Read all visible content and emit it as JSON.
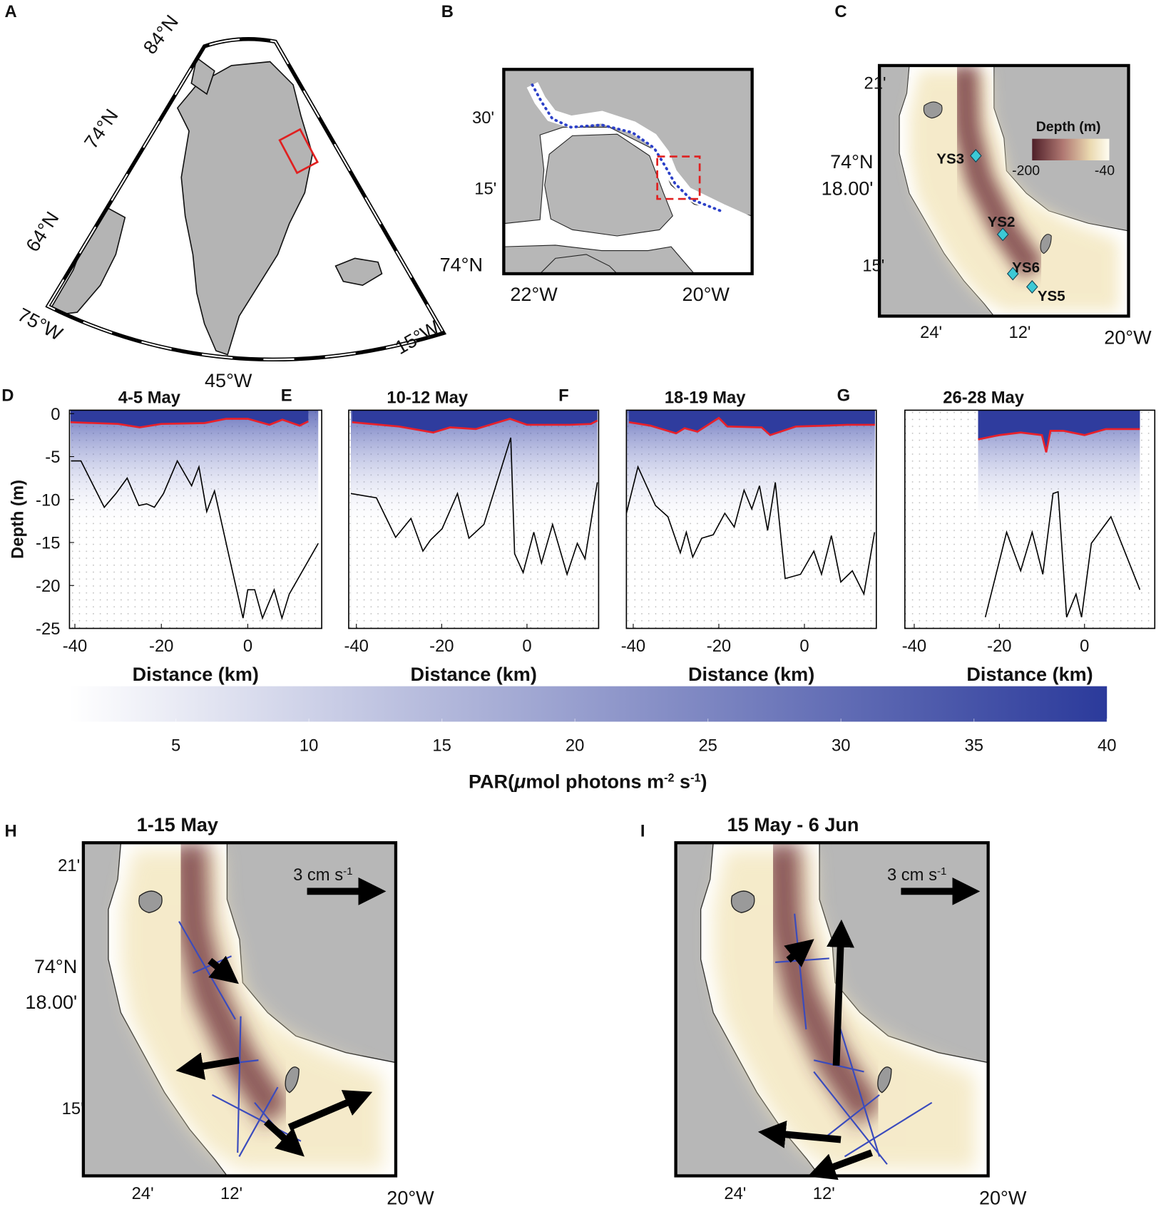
{
  "maps": {
    "A": {
      "label": "A",
      "lat": [
        "84°N",
        "74°N",
        "64°N"
      ],
      "lon": [
        "75°W",
        "45°W",
        "15°W"
      ]
    },
    "B": {
      "label": "B",
      "lat": [
        "30'",
        "15'",
        "74°N"
      ],
      "lon": [
        "22°W",
        "20°W"
      ]
    },
    "C": {
      "label": "C",
      "lat": [
        "21'",
        "74°N",
        "18.00'",
        "15'"
      ],
      "lon": [
        "24'",
        "12'",
        "20°W"
      ],
      "legend": {
        "title": "Depth (m)",
        "ticks": [
          -200,
          -40
        ]
      },
      "stations": [
        "YS3",
        "YS2",
        "YS6",
        "YS5"
      ]
    },
    "H": {
      "label": "H",
      "title": "1-15 May",
      "scale": {
        "text": "3 cm s",
        "exp": "-1"
      },
      "lat": [
        "21'",
        "74°N",
        "18.00'",
        "15'"
      ],
      "lon": [
        "24'",
        "12'",
        "20°W"
      ]
    },
    "I": {
      "label": "I",
      "title": "15 May - 6 Jun",
      "scale": {
        "text": "3 cm s",
        "exp": "-1"
      },
      "lon": [
        "24'",
        "12'",
        "20°W"
      ]
    }
  },
  "chart_data": [
    {
      "type": "line",
      "label": "D",
      "title": "4-5 May",
      "xlabel": "Distance (km)",
      "ylabel": "Depth (m)",
      "xlim": [
        -41.25,
        17.1
      ],
      "ylim": [
        -25,
        0.4
      ],
      "xticks": [
        -40,
        -20,
        0
      ],
      "yticks": [
        0,
        -5,
        -10,
        -15,
        -20,
        -25
      ],
      "series": [
        {
          "color": "#000000",
          "x": [
            -40.9,
            -38.6,
            -33.2,
            -30.5,
            -27.9,
            -25.2,
            -23.4,
            -21.6,
            -19.5,
            -16.3,
            -13,
            -11.3,
            -9.5,
            -7.7,
            -4.6,
            -1.1,
            0,
            1.6,
            3.4,
            6.1,
            7.9,
            9.6,
            16.3
          ],
          "values": [
            -5.5,
            -5.5,
            -10.9,
            -9.3,
            -7.5,
            -10.7,
            -10.5,
            -10.9,
            -9.3,
            -5.5,
            -8.4,
            -6.2,
            -11.4,
            -9,
            -16,
            -23.8,
            -20.5,
            -20.5,
            -23.8,
            -20.5,
            -23.8,
            -21,
            -15.1
          ]
        },
        {
          "color": "#e8202a",
          "x": [
            -41,
            -30,
            -25,
            -20,
            -10,
            -5,
            0,
            5,
            8,
            12,
            14
          ],
          "values": [
            -1.0,
            -1.2,
            -1.6,
            -1.2,
            -1.1,
            -0.6,
            -0.6,
            -1.3,
            -0.7,
            -1.4,
            -0.9
          ]
        }
      ]
    },
    {
      "type": "line",
      "label": "E",
      "title": "10-12 May",
      "xlabel": "Distance (km)",
      "xlim": [
        -41.8,
        16.8
      ],
      "ylim": [
        -25,
        0.4
      ],
      "xticks": [
        -40,
        -20,
        0
      ],
      "series": [
        {
          "color": "#000000",
          "x": [
            -41.3,
            -35.3,
            -30.8,
            -27.2,
            -24.4,
            -22.6,
            -19.9,
            -16.3,
            -13.6,
            -10.1,
            -3.8,
            -2.9,
            -0.9,
            1.6,
            3.4,
            6,
            9.4,
            11.8,
            13.6,
            16.5
          ],
          "values": [
            -9.3,
            -9.8,
            -14.4,
            -12.2,
            -16,
            -14.7,
            -13.4,
            -9.3,
            -14.5,
            -12.9,
            -2.8,
            -16.3,
            -18.5,
            -13.8,
            -17.4,
            -12.9,
            -18.7,
            -15.1,
            -16.9,
            -8
          ]
        },
        {
          "color": "#e8202a",
          "x": [
            -41,
            -30,
            -22,
            -18,
            -12,
            -4,
            0,
            10,
            15,
            16.5
          ],
          "values": [
            -1,
            -1.5,
            -2.2,
            -1.6,
            -1.8,
            -0.6,
            -1.3,
            -1.3,
            -1.2,
            -0.8
          ]
        }
      ]
    },
    {
      "type": "line",
      "label": "F",
      "title": "18-19 May",
      "xlabel": "Distance (km)",
      "xlim": [
        -41.6,
        16.8
      ],
      "ylim": [
        -25,
        0.4
      ],
      "xticks": [
        -40,
        -20,
        0
      ],
      "series": [
        {
          "color": "#000000",
          "x": [
            -41.6,
            -38.9,
            -34.8,
            -31.9,
            -29,
            -27.6,
            -26.1,
            -24,
            -21.3,
            -18.6,
            -16.4,
            -14.1,
            -12.3,
            -10.5,
            -8.6,
            -6.8,
            -4.5,
            -0.9,
            2.2,
            4,
            6.3,
            8.5,
            11.2,
            13.9,
            16.4
          ],
          "values": [
            -11.6,
            -6.2,
            -10.7,
            -12,
            -16.2,
            -13.8,
            -16.7,
            -14.5,
            -14.1,
            -11.6,
            -13.2,
            -8.9,
            -11.1,
            -8.4,
            -13.6,
            -8,
            -19.2,
            -18.7,
            -16,
            -18.7,
            -14.2,
            -19.6,
            -18.3,
            -21,
            -13.8
          ]
        },
        {
          "color": "#e8202a",
          "x": [
            -41,
            -36,
            -30,
            -28,
            -25,
            -20,
            -18,
            -10,
            -8,
            -2,
            5,
            10,
            16.5
          ],
          "values": [
            -1,
            -1.4,
            -2.3,
            -1.7,
            -2.1,
            -0.5,
            -1.5,
            -1.6,
            -2.5,
            -1.5,
            -1.4,
            -1.3,
            -1.3
          ]
        }
      ]
    },
    {
      "type": "line",
      "label": "G",
      "title": "26-28 May",
      "xlabel": "Distance (km)",
      "xlim": [
        -42.2,
        16.5
      ],
      "ylim": [
        -25,
        0.4
      ],
      "xticks": [
        -40,
        -20,
        0
      ],
      "series": [
        {
          "color": "#000000",
          "x": [
            -23.3,
            -18.3,
            -15,
            -12.3,
            -9.8,
            -7.4,
            -6.2,
            -4.2,
            -2,
            -0.7,
            1.6,
            6.2,
            13
          ],
          "values": [
            -23.7,
            -13.8,
            -18.3,
            -13.8,
            -18.7,
            -9.3,
            -9.1,
            -23.7,
            -21,
            -23.7,
            -15.1,
            -12,
            -20.5
          ]
        },
        {
          "color": "#e8202a",
          "x": [
            -25,
            -20,
            -15,
            -10,
            -9,
            -8,
            -5,
            0,
            5,
            13
          ],
          "values": [
            -3,
            -2.5,
            -2.2,
            -2.5,
            -4.5,
            -2,
            -2,
            -2.5,
            -1.8,
            -1.8
          ]
        }
      ]
    }
  ],
  "colorbar": {
    "lim": [
      1,
      40
    ],
    "ticks": [
      5,
      10,
      15,
      20,
      25,
      30,
      35,
      40
    ],
    "colors": [
      "#ffffff",
      "#2b3a9b"
    ],
    "label": [
      "PAR(",
      "μ",
      "mol photons m",
      "-2",
      " s",
      "-1",
      ")"
    ]
  }
}
